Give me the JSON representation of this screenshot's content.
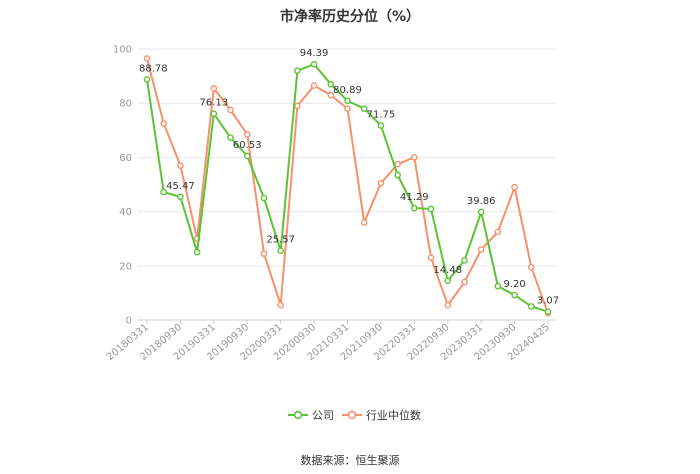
{
  "page": {
    "title": "市净率历史分位（%）",
    "source": "数据来源：恒生聚源"
  },
  "chart_data": {
    "type": "line",
    "title": "市净率历史分位（%）",
    "ylim": [
      0,
      100
    ],
    "yticks": [
      0,
      20,
      40,
      60,
      80,
      100
    ],
    "x_tick_labels": [
      "20180331",
      "20180930",
      "20190331",
      "20190930",
      "20200331",
      "20200930",
      "20210331",
      "20210930",
      "20220331",
      "20220930",
      "20230331",
      "20230930",
      "20240425"
    ],
    "grid": true,
    "legend_position": "bottom",
    "series": [
      {
        "name": "公司",
        "color": "#5cc334",
        "values": [
          88.78,
          47.2,
          45.47,
          25.0,
          76.13,
          67.3,
          60.53,
          45.0,
          25.57,
          92.0,
          94.39,
          87.0,
          80.89,
          78.0,
          71.75,
          53.5,
          41.29,
          41.0,
          14.48,
          22.0,
          39.86,
          12.5,
          9.2,
          5.0,
          3.07
        ],
        "labels": {
          "0": "88.78",
          "2": "45.47",
          "4": "76.13",
          "6": "60.53",
          "8": "25.57",
          "10": "94.39",
          "12": "80.89",
          "14": "71.75",
          "16": "41.29",
          "18": "14.48",
          "20": "39.86",
          "22": "9.20",
          "24": "3.07"
        }
      },
      {
        "name": "行业中位数",
        "color": "#f5916b",
        "values": [
          96.5,
          72.5,
          57.0,
          30.0,
          85.5,
          77.5,
          68.5,
          24.5,
          5.5,
          79.0,
          86.5,
          83.0,
          78.0,
          36.0,
          50.5,
          57.5,
          60.0,
          23.0,
          5.5,
          14.0,
          26.0,
          32.5,
          49.0,
          19.5,
          2.5
        ]
      }
    ]
  }
}
